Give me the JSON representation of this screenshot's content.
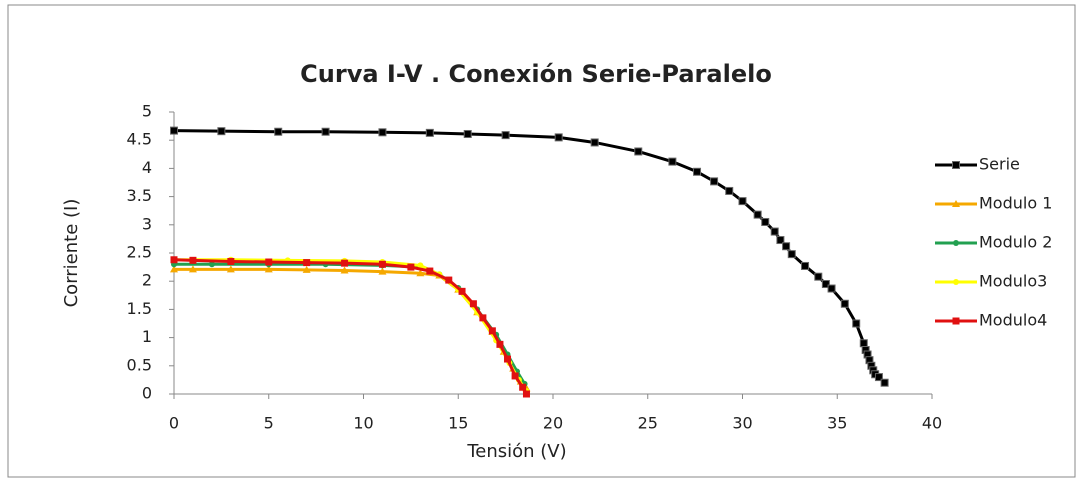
{
  "chart_data": {
    "type": "line",
    "title": "Curva I-V . Conexión Serie-Paralelo",
    "xlabel": "Tensión (V)",
    "ylabel": "Corriente (I)",
    "xlim": [
      0,
      40
    ],
    "xticks": [
      0,
      5,
      10,
      15,
      20,
      25,
      30,
      35,
      40
    ],
    "ylim": [
      0,
      5
    ],
    "yticks": [
      0,
      0.5,
      1,
      1.5,
      2,
      2.5,
      3,
      3.5,
      4,
      4.5,
      5
    ],
    "grid": false,
    "legend": "right",
    "series": [
      {
        "name": "Serie",
        "color": "#000000",
        "marker": "square",
        "x": [
          0,
          2.5,
          5.5,
          8,
          11,
          13.5,
          15.5,
          17.5,
          20.3,
          22.2,
          24.5,
          26.3,
          27.6,
          28.5,
          29.3,
          30,
          30.8,
          31.2,
          31.7,
          32,
          32.3,
          32.6,
          33.3,
          34,
          34.4,
          34.7,
          35.4,
          36,
          36.4,
          36.5,
          36.6,
          36.7,
          36.8,
          36.9,
          37,
          37.2,
          37.5
        ],
        "values": [
          4.67,
          4.66,
          4.65,
          4.65,
          4.64,
          4.63,
          4.61,
          4.59,
          4.55,
          4.46,
          4.3,
          4.12,
          3.94,
          3.77,
          3.6,
          3.42,
          3.18,
          3.05,
          2.88,
          2.73,
          2.62,
          2.48,
          2.27,
          2.08,
          1.95,
          1.87,
          1.6,
          1.25,
          0.9,
          0.78,
          0.7,
          0.6,
          0.5,
          0.42,
          0.35,
          0.3,
          0.2
        ]
      },
      {
        "name": "Modulo 1",
        "color": "#f5a800",
        "marker": "triangle",
        "x": [
          0,
          1,
          3,
          5,
          7,
          9,
          11,
          13,
          14,
          15,
          16,
          16.8,
          17.4,
          17.9,
          18.3,
          18.6
        ],
        "values": [
          2.21,
          2.21,
          2.21,
          2.21,
          2.2,
          2.19,
          2.17,
          2.14,
          2.1,
          1.85,
          1.45,
          1.1,
          0.75,
          0.45,
          0.22,
          0.1
        ]
      },
      {
        "name": "Modulo 2",
        "color": "#22a050",
        "marker": "circle",
        "x": [
          0,
          2,
          5,
          8,
          11,
          13,
          14,
          15,
          16,
          17,
          17.6,
          18.1,
          18.5
        ],
        "values": [
          2.3,
          2.3,
          2.3,
          2.3,
          2.28,
          2.25,
          2.12,
          1.88,
          1.5,
          1.05,
          0.7,
          0.4,
          0.18
        ]
      },
      {
        "name": "Modulo3",
        "color": "#ffff00",
        "marker": "circle",
        "x": [
          0,
          3,
          6,
          9,
          11,
          13,
          14,
          15,
          16,
          17,
          17.7,
          18.2,
          18.6
        ],
        "values": [
          2.38,
          2.38,
          2.37,
          2.36,
          2.34,
          2.28,
          2.12,
          1.85,
          1.45,
          0.95,
          0.55,
          0.25,
          0.05
        ]
      },
      {
        "name": "Modulo4",
        "color": "#e01010",
        "marker": "square",
        "x": [
          0,
          1,
          3,
          5,
          7,
          9,
          11,
          12.5,
          13.5,
          14.5,
          15.2,
          15.8,
          16.3,
          16.8,
          17.2,
          17.6,
          18,
          18.4,
          18.6
        ],
        "values": [
          2.38,
          2.37,
          2.35,
          2.34,
          2.33,
          2.32,
          2.3,
          2.25,
          2.18,
          2.02,
          1.82,
          1.6,
          1.35,
          1.12,
          0.88,
          0.62,
          0.32,
          0.12,
          0
        ]
      }
    ]
  }
}
